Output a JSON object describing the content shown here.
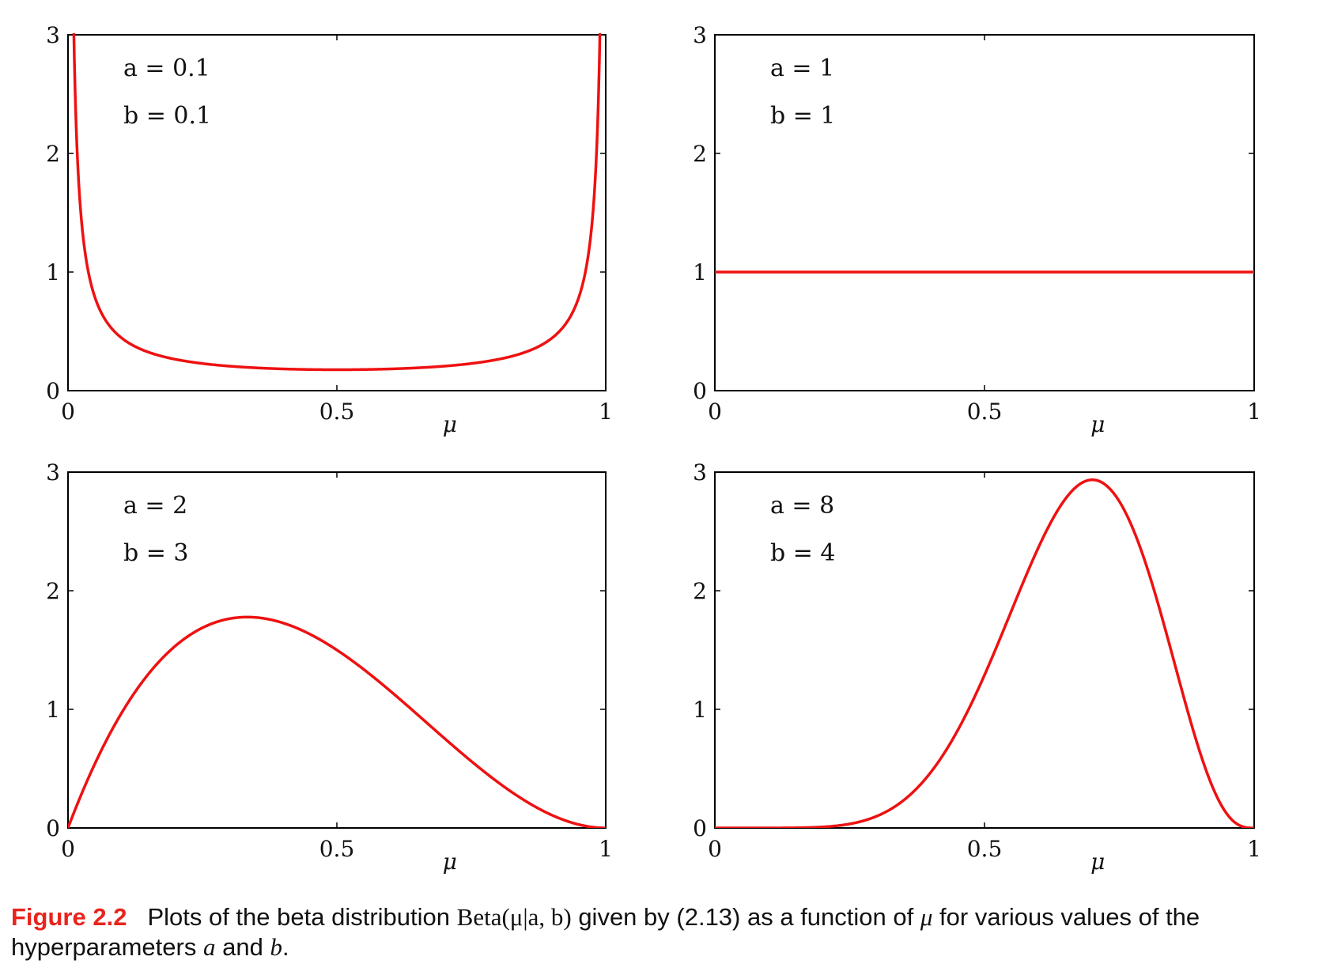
{
  "chart_data": [
    {
      "type": "line",
      "formula": "Beta(mu|a,b)",
      "params": {
        "a": 0.1,
        "b": 0.1
      },
      "annotation": {
        "a_text": "a = 0.1",
        "b_text": "b = 0.1"
      },
      "xlabel": "μ",
      "ylabel": "",
      "xlim": [
        0,
        1
      ],
      "ylim": [
        0,
        3
      ],
      "xticks": [
        0,
        0.5,
        1
      ],
      "xtick_labels": [
        "0",
        "0.5",
        "1"
      ],
      "yticks": [
        0,
        1,
        2,
        3
      ],
      "ytick_labels": [
        "0",
        "1",
        "2",
        "3"
      ],
      "color": "#ee1111"
    },
    {
      "type": "line",
      "formula": "Beta(mu|a,b)",
      "params": {
        "a": 1,
        "b": 1
      },
      "annotation": {
        "a_text": "a = 1",
        "b_text": "b = 1"
      },
      "xlabel": "μ",
      "ylabel": "",
      "xlim": [
        0,
        1
      ],
      "ylim": [
        0,
        3
      ],
      "xticks": [
        0,
        0.5,
        1
      ],
      "xtick_labels": [
        "0",
        "0.5",
        "1"
      ],
      "yticks": [
        0,
        1,
        2,
        3
      ],
      "ytick_labels": [
        "0",
        "1",
        "2",
        "3"
      ],
      "color": "#ee1111"
    },
    {
      "type": "line",
      "formula": "Beta(mu|a,b)",
      "params": {
        "a": 2,
        "b": 3
      },
      "annotation": {
        "a_text": "a = 2",
        "b_text": "b = 3"
      },
      "xlabel": "μ",
      "ylabel": "",
      "xlim": [
        0,
        1
      ],
      "ylim": [
        0,
        3
      ],
      "xticks": [
        0,
        0.5,
        1
      ],
      "xtick_labels": [
        "0",
        "0.5",
        "1"
      ],
      "yticks": [
        0,
        1,
        2,
        3
      ],
      "ytick_labels": [
        "0",
        "1",
        "2",
        "3"
      ],
      "color": "#ee1111"
    },
    {
      "type": "line",
      "formula": "Beta(mu|a,b)",
      "params": {
        "a": 8,
        "b": 4
      },
      "annotation": {
        "a_text": "a = 8",
        "b_text": "b = 4"
      },
      "xlabel": "μ",
      "ylabel": "",
      "xlim": [
        0,
        1
      ],
      "ylim": [
        0,
        3
      ],
      "xticks": [
        0,
        0.5,
        1
      ],
      "xtick_labels": [
        "0",
        "0.5",
        "1"
      ],
      "yticks": [
        0,
        1,
        2,
        3
      ],
      "ytick_labels": [
        "0",
        "1",
        "2",
        "3"
      ],
      "color": "#ee1111"
    }
  ],
  "caption": {
    "label": "Figure 2.2",
    "text_1": "Plots of the beta distribution",
    "math_1": "Beta(μ|a, b)",
    "text_2": "given by (2.13) as a function of",
    "math_2": "μ",
    "text_3": "for various values of the hyperparameters",
    "math_3": "a",
    "text_4": "and",
    "math_4": "b",
    "text_5": "."
  },
  "colors": {
    "curve": "#ee1111",
    "caption_label": "#e8241c"
  }
}
